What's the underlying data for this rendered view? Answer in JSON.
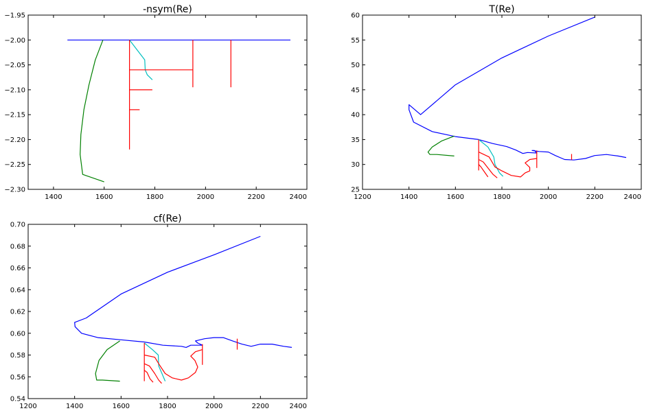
{
  "figure": {
    "background": "#ffffff"
  },
  "chart_data": [
    {
      "type": "line",
      "title": "-nsym(Re)",
      "xlim": [
        1300,
        2400
      ],
      "ylim": [
        -2.3,
        -1.95
      ],
      "xticks": [
        1400,
        1600,
        1800,
        2000,
        2200,
        2400
      ],
      "yticks": [
        -2.3,
        -2.25,
        -2.2,
        -2.15,
        -2.1,
        -2.05,
        -2.0,
        -1.95
      ],
      "xtick_labels": [
        "1400",
        "1600",
        "1800",
        "2000",
        "2200",
        "2400"
      ],
      "ytick_labels": [
        "−2.30",
        "−2.25",
        "−2.20",
        "−2.15",
        "−2.10",
        "−2.05",
        "−2.00",
        "−1.95"
      ],
      "grid": false,
      "series": [
        {
          "color": "#0000ff",
          "points": [
            [
              1455,
              -2.0
            ],
            [
              2335,
              -2.0
            ]
          ]
        },
        {
          "color": "#008000",
          "points": [
            [
              1595,
              -2.0
            ],
            [
              1565,
              -2.04
            ],
            [
              1540,
              -2.09
            ],
            [
              1520,
              -2.14
            ],
            [
              1508,
              -2.19
            ],
            [
              1505,
              -2.23
            ],
            [
              1515,
              -2.27
            ],
            [
              1600,
              -2.285
            ]
          ]
        },
        {
          "color": "#00bfbf",
          "points": [
            [
              1700,
              -2.0
            ],
            [
              1730,
              -2.02
            ],
            [
              1760,
              -2.04
            ],
            [
              1762,
              -2.06
            ],
            [
              1770,
              -2.07
            ],
            [
              1790,
              -2.08
            ]
          ]
        },
        {
          "color": "#ff0000",
          "points": [
            [
              1700,
              -2.0
            ],
            [
              1700,
              -2.22
            ]
          ]
        },
        {
          "color": "#ff0000",
          "points": [
            [
              1700,
              -2.06
            ],
            [
              1950,
              -2.06
            ]
          ]
        },
        {
          "color": "#ff0000",
          "points": [
            [
              1950,
              -2.0
            ],
            [
              1950,
              -2.095
            ]
          ]
        },
        {
          "color": "#ff0000",
          "points": [
            [
              1700,
              -2.1
            ],
            [
              1790,
              -2.1
            ]
          ]
        },
        {
          "color": "#ff0000",
          "points": [
            [
              1700,
              -2.14
            ],
            [
              1740,
              -2.14
            ]
          ]
        },
        {
          "color": "#ff0000",
          "points": [
            [
              2100,
              -2.0
            ],
            [
              2100,
              -2.095
            ]
          ]
        }
      ]
    },
    {
      "type": "line",
      "title": "T(Re)",
      "xlim": [
        1200,
        2400
      ],
      "ylim": [
        25,
        60
      ],
      "xticks": [
        1200,
        1400,
        1600,
        1800,
        2000,
        2200,
        2400
      ],
      "yticks": [
        25,
        30,
        35,
        40,
        45,
        50,
        55,
        60
      ],
      "xtick_labels": [
        "1200",
        "1400",
        "1600",
        "1800",
        "2000",
        "2200",
        "2400"
      ],
      "ytick_labels": [
        "25",
        "30",
        "35",
        "40",
        "45",
        "50",
        "55",
        "60"
      ],
      "grid": false,
      "series": [
        {
          "color": "#0000ff",
          "points": [
            [
              2200,
              59.6
            ],
            [
              2000,
              55.8
            ],
            [
              1800,
              51.4
            ],
            [
              1600,
              46.0
            ],
            [
              1450,
              40.0
            ],
            [
              1400,
              42.0
            ],
            [
              1400,
              41.0
            ],
            [
              1420,
              38.5
            ],
            [
              1500,
              36.6
            ],
            [
              1600,
              35.6
            ],
            [
              1700,
              35.0
            ],
            [
              1760,
              34.2
            ],
            [
              1820,
              33.6
            ],
            [
              1860,
              32.9
            ],
            [
              1890,
              32.2
            ],
            [
              1910,
              32.4
            ],
            [
              1950,
              32.3
            ],
            [
              1940,
              32.8
            ],
            [
              1930,
              32.8
            ],
            [
              1960,
              32.6
            ],
            [
              2000,
              32.5
            ],
            [
              2030,
              31.8
            ],
            [
              2070,
              31.0
            ],
            [
              2110,
              30.9
            ],
            [
              2160,
              31.2
            ],
            [
              2200,
              31.8
            ],
            [
              2250,
              32.0
            ],
            [
              2300,
              31.7
            ],
            [
              2335,
              31.4
            ]
          ]
        },
        {
          "color": "#008000",
          "points": [
            [
              1595,
              35.7
            ],
            [
              1540,
              34.7
            ],
            [
              1500,
              33.5
            ],
            [
              1482,
              32.5
            ],
            [
              1490,
              32.0
            ],
            [
              1520,
              32.0
            ],
            [
              1595,
              31.7
            ]
          ]
        },
        {
          "color": "#00bfbf",
          "points": [
            [
              1700,
              35.0
            ],
            [
              1740,
              33.5
            ],
            [
              1765,
              31.5
            ],
            [
              1770,
              30.0
            ],
            [
              1790,
              28.3
            ],
            [
              1805,
              27.6
            ]
          ]
        },
        {
          "color": "#ff0000",
          "points": [
            [
              1700,
              35.0
            ],
            [
              1700,
              28.8
            ]
          ]
        },
        {
          "color": "#ff0000",
          "points": [
            [
              1700,
              32.5
            ],
            [
              1745,
              31.5
            ],
            [
              1770,
              29.5
            ],
            [
              1800,
              28.7
            ],
            [
              1840,
              27.8
            ],
            [
              1880,
              27.5
            ],
            [
              1900,
              28.3
            ],
            [
              1920,
              28.7
            ],
            [
              1920,
              29.4
            ],
            [
              1900,
              30.3
            ],
            [
              1920,
              31.0
            ],
            [
              1950,
              31.2
            ]
          ]
        },
        {
          "color": "#ff0000",
          "points": [
            [
              1700,
              31.0
            ],
            [
              1720,
              30.5
            ],
            [
              1745,
              29.0
            ],
            [
              1762,
              28.0
            ],
            [
              1780,
              27.3
            ]
          ]
        },
        {
          "color": "#ff0000",
          "points": [
            [
              1700,
              30.0
            ],
            [
              1710,
              29.5
            ],
            [
              1725,
              28.5
            ],
            [
              1740,
              27.5
            ]
          ]
        },
        {
          "color": "#ff0000",
          "points": [
            [
              1950,
              32.8
            ],
            [
              1950,
              29.3
            ]
          ]
        },
        {
          "color": "#ff0000",
          "points": [
            [
              2100,
              32.1
            ],
            [
              2100,
              30.9
            ]
          ]
        }
      ]
    },
    {
      "type": "line",
      "title": "cf(Re)",
      "xlim": [
        1200,
        2400
      ],
      "ylim": [
        0.54,
        0.7
      ],
      "xticks": [
        1200,
        1400,
        1600,
        1800,
        2000,
        2200,
        2400
      ],
      "yticks": [
        0.54,
        0.56,
        0.58,
        0.6,
        0.62,
        0.64,
        0.66,
        0.68,
        0.7
      ],
      "xtick_labels": [
        "1200",
        "1400",
        "1600",
        "1800",
        "2000",
        "2200",
        "2400"
      ],
      "ytick_labels": [
        "0.54",
        "0.56",
        "0.58",
        "0.60",
        "0.62",
        "0.64",
        "0.66",
        "0.68",
        "0.70"
      ],
      "grid": false,
      "series": [
        {
          "color": "#0000ff",
          "points": [
            [
              2200,
              0.689
            ],
            [
              2000,
              0.672
            ],
            [
              1800,
              0.656
            ],
            [
              1600,
              0.636
            ],
            [
              1450,
              0.614
            ],
            [
              1400,
              0.61
            ],
            [
              1402,
              0.606
            ],
            [
              1430,
              0.6
            ],
            [
              1500,
              0.596
            ],
            [
              1600,
              0.594
            ],
            [
              1700,
              0.592
            ],
            [
              1780,
              0.589
            ],
            [
              1860,
              0.588
            ],
            [
              1880,
              0.587
            ],
            [
              1900,
              0.589
            ],
            [
              1950,
              0.589
            ],
            [
              1930,
              0.591
            ],
            [
              1920,
              0.593
            ],
            [
              1960,
              0.595
            ],
            [
              2000,
              0.596
            ],
            [
              2040,
              0.596
            ],
            [
              2080,
              0.593
            ],
            [
              2120,
              0.59
            ],
            [
              2160,
              0.588
            ],
            [
              2200,
              0.59
            ],
            [
              2250,
              0.59
            ],
            [
              2300,
              0.588
            ],
            [
              2335,
              0.587
            ]
          ]
        },
        {
          "color": "#008000",
          "points": [
            [
              1595,
              0.593
            ],
            [
              1540,
              0.585
            ],
            [
              1505,
              0.575
            ],
            [
              1490,
              0.563
            ],
            [
              1495,
              0.557
            ],
            [
              1520,
              0.557
            ],
            [
              1595,
              0.556
            ]
          ]
        },
        {
          "color": "#00bfbf",
          "points": [
            [
              1700,
              0.591
            ],
            [
              1735,
              0.585
            ],
            [
              1760,
              0.58
            ],
            [
              1762,
              0.57
            ],
            [
              1778,
              0.562
            ],
            [
              1790,
              0.556
            ]
          ]
        },
        {
          "color": "#ff0000",
          "points": [
            [
              1700,
              0.591
            ],
            [
              1700,
              0.556
            ]
          ]
        },
        {
          "color": "#ff0000",
          "points": [
            [
              1700,
              0.58
            ],
            [
              1745,
              0.578
            ],
            [
              1765,
              0.571
            ],
            [
              1790,
              0.563
            ],
            [
              1820,
              0.559
            ],
            [
              1860,
              0.557
            ],
            [
              1890,
              0.559
            ],
            [
              1920,
              0.564
            ],
            [
              1930,
              0.569
            ],
            [
              1918,
              0.575
            ],
            [
              1900,
              0.579
            ],
            [
              1920,
              0.583
            ],
            [
              1950,
              0.585
            ]
          ]
        },
        {
          "color": "#ff0000",
          "points": [
            [
              1700,
              0.572
            ],
            [
              1722,
              0.57
            ],
            [
              1745,
              0.563
            ],
            [
              1762,
              0.557
            ],
            [
              1775,
              0.554
            ]
          ]
        },
        {
          "color": "#ff0000",
          "points": [
            [
              1700,
              0.566
            ],
            [
              1712,
              0.564
            ],
            [
              1725,
              0.558
            ],
            [
              1738,
              0.555
            ]
          ]
        },
        {
          "color": "#ff0000",
          "points": [
            [
              1950,
              0.59
            ],
            [
              1950,
              0.571
            ]
          ]
        },
        {
          "color": "#ff0000",
          "points": [
            [
              2100,
              0.595
            ],
            [
              2100,
              0.585
            ]
          ]
        }
      ]
    }
  ]
}
